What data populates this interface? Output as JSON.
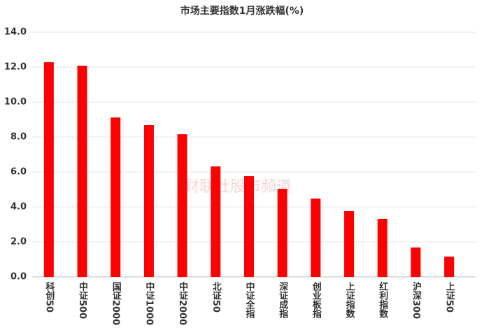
{
  "chart_data": {
    "type": "bar",
    "title": "市场主要指数1月涨跌幅(%)",
    "categories": [
      "科创50",
      "中证500",
      "国证2000",
      "中证1000",
      "中证2000",
      "北证50",
      "中证全指",
      "深证成指",
      "创业板指",
      "上证指数",
      "红利指数",
      "沪深300",
      "上证50"
    ],
    "values": [
      12.28,
      12.08,
      9.12,
      8.68,
      8.16,
      6.32,
      5.76,
      5.04,
      4.48,
      3.76,
      3.32,
      1.68,
      1.16
    ],
    "color": "#ff0000",
    "ylim": [
      0,
      14
    ],
    "yticks": [
      {
        "value": 0,
        "label": "0.0"
      },
      {
        "value": 2,
        "label": "2.0"
      },
      {
        "value": 4,
        "label": "4.0"
      },
      {
        "value": 6,
        "label": "6.0"
      },
      {
        "value": 8,
        "label": "8.0"
      },
      {
        "value": 10,
        "label": "10.0"
      },
      {
        "value": 12,
        "label": "12.0"
      },
      {
        "value": 14,
        "label": "14.0"
      }
    ],
    "grid": true,
    "watermark": "财联社股市频道"
  }
}
